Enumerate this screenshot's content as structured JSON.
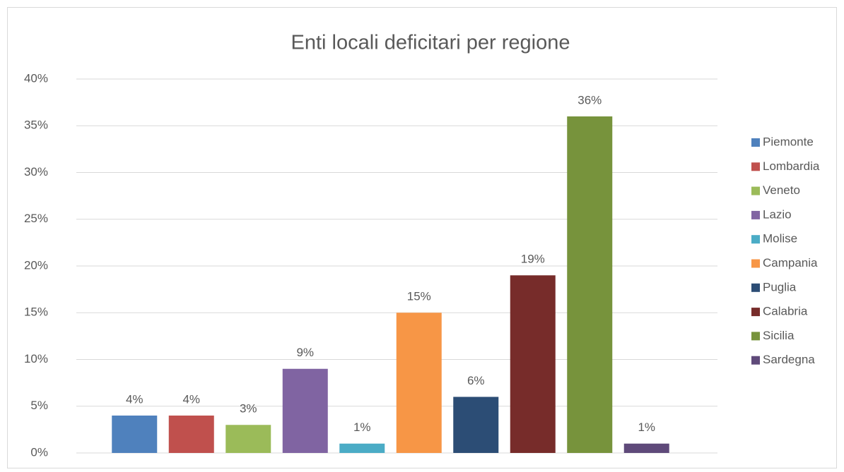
{
  "chart_data": {
    "type": "bar",
    "title": "Enti locali deficitari per regione",
    "categories": [
      null
    ],
    "series": [
      {
        "name": "Piemonte",
        "color": "#4f81bd",
        "values": [
          4
        ],
        "value_labels": [
          "4%"
        ]
      },
      {
        "name": "Lombardia",
        "color": "#c0504d",
        "values": [
          4
        ],
        "value_labels": [
          "4%"
        ]
      },
      {
        "name": "Veneto",
        "color": "#9bbb59",
        "values": [
          3
        ],
        "value_labels": [
          "3%"
        ]
      },
      {
        "name": "Lazio",
        "color": "#8064a2",
        "values": [
          9
        ],
        "value_labels": [
          "9%"
        ]
      },
      {
        "name": "Molise",
        "color": "#4bacc6",
        "values": [
          1
        ],
        "value_labels": [
          "1%"
        ]
      },
      {
        "name": "Campania",
        "color": "#f79646",
        "values": [
          15
        ],
        "value_labels": [
          "15%"
        ]
      },
      {
        "name": "Puglia",
        "color": "#2c4d75",
        "values": [
          6
        ],
        "value_labels": [
          "6%"
        ]
      },
      {
        "name": "Calabria",
        "color": "#772c2a",
        "values": [
          19
        ],
        "value_labels": [
          "19%"
        ]
      },
      {
        "name": "Sicilia",
        "color": "#77933c",
        "values": [
          36
        ],
        "value_labels": [
          "36%"
        ]
      },
      {
        "name": "Sardegna",
        "color": "#5f4a7a",
        "values": [
          1
        ],
        "value_labels": [
          "1%"
        ]
      }
    ],
    "ylim": [
      0,
      40
    ],
    "yticks": [
      {
        "value": 0,
        "label": "0%"
      },
      {
        "value": 5,
        "label": "5%"
      },
      {
        "value": 10,
        "label": "10%"
      },
      {
        "value": 15,
        "label": "15%"
      },
      {
        "value": 20,
        "label": "20%"
      },
      {
        "value": 25,
        "label": "25%"
      },
      {
        "value": 30,
        "label": "30%"
      },
      {
        "value": 35,
        "label": "35%"
      },
      {
        "value": 40,
        "label": "40%"
      }
    ],
    "grid": true,
    "legend": "right"
  }
}
